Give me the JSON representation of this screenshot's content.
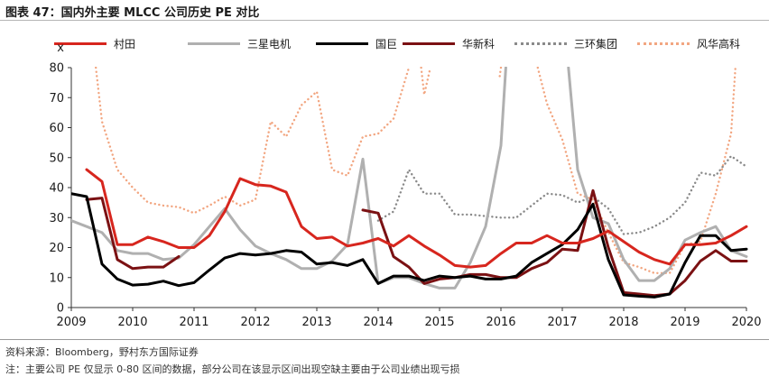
{
  "figure": {
    "title": "图表 47：国内外主要 MLCC 公司历史 PE 对比",
    "source": "资料来源：Bloomberg，野村东方国际证券",
    "note": "注：主要公司 PE 仅显示 0-80 区间的数据，部分公司在该显示区间出现空缺主要由于公司业绩出现亏损"
  },
  "colors": {
    "murata": "#d7261e",
    "samsung": "#b0b0b0",
    "yageo": "#000000",
    "huaxin": "#7b1113",
    "sanhuan": "#8a8a8a",
    "fenghua": "#f2a681"
  },
  "chart_data": {
    "type": "line",
    "title": "",
    "xlabel": "",
    "ylabel": "x",
    "xlim": [
      2009,
      2020
    ],
    "ylim": [
      0,
      80
    ],
    "xticks": [
      "2009",
      "2010",
      "2011",
      "2012",
      "2013",
      "2014",
      "2015",
      "2016",
      "2017",
      "2018",
      "2019",
      "2020"
    ],
    "yticks": [
      "0",
      "10",
      "20",
      "30",
      "40",
      "50",
      "60",
      "70",
      "80"
    ],
    "grid": false,
    "legend_position": "top",
    "series": [
      {
        "name": "村田",
        "key": "murata",
        "style": "solid",
        "points": [
          [
            2009.25,
            46
          ],
          [
            2009.5,
            42
          ],
          [
            2009.75,
            21
          ],
          [
            2010.0,
            21
          ],
          [
            2010.25,
            23.5
          ],
          [
            2010.5,
            22
          ],
          [
            2010.75,
            20
          ],
          [
            2011.0,
            20
          ],
          [
            2011.25,
            24
          ],
          [
            2011.5,
            32
          ],
          [
            2011.75,
            43
          ],
          [
            2012.0,
            41
          ],
          [
            2012.25,
            40.5
          ],
          [
            2012.5,
            38.5
          ],
          [
            2012.75,
            27
          ],
          [
            2013.0,
            23
          ],
          [
            2013.25,
            23.5
          ],
          [
            2013.5,
            20.5
          ],
          [
            2013.75,
            21.5
          ],
          [
            2014.0,
            23
          ],
          [
            2014.25,
            20.5
          ],
          [
            2014.5,
            24
          ],
          [
            2014.75,
            20.5
          ],
          [
            2015.0,
            17.5
          ],
          [
            2015.25,
            14
          ],
          [
            2015.5,
            13.5
          ],
          [
            2015.75,
            14
          ],
          [
            2016.0,
            18
          ],
          [
            2016.25,
            21.5
          ],
          [
            2016.5,
            21.5
          ],
          [
            2016.75,
            24
          ],
          [
            2017.0,
            21.5
          ],
          [
            2017.25,
            21.5
          ],
          [
            2017.5,
            23
          ],
          [
            2017.75,
            25.5
          ],
          [
            2018.0,
            22
          ],
          [
            2018.25,
            18.5
          ],
          [
            2018.5,
            16
          ],
          [
            2018.75,
            14.5
          ],
          [
            2019.0,
            21
          ],
          [
            2019.25,
            21
          ],
          [
            2019.5,
            21.5
          ],
          [
            2019.75,
            24
          ],
          [
            2020.0,
            27
          ]
        ]
      },
      {
        "name": "三星电机",
        "key": "samsung",
        "style": "solid",
        "points": [
          [
            2009.0,
            29
          ],
          [
            2009.25,
            27
          ],
          [
            2009.5,
            25
          ],
          [
            2009.75,
            19
          ],
          [
            2010.0,
            18
          ],
          [
            2010.25,
            18
          ],
          [
            2010.5,
            16
          ],
          [
            2010.75,
            16.5
          ],
          [
            2011.0,
            21
          ],
          [
            2011.25,
            27
          ],
          [
            2011.5,
            33
          ],
          [
            2011.75,
            26
          ],
          [
            2012.0,
            20.5
          ],
          [
            2012.25,
            18
          ],
          [
            2012.5,
            16
          ],
          [
            2012.75,
            13
          ],
          [
            2013.0,
            13
          ],
          [
            2013.25,
            15.5
          ],
          [
            2013.5,
            21
          ],
          [
            2013.75,
            49.5
          ],
          [
            2014.0,
            8
          ],
          [
            2014.25,
            10
          ],
          [
            2014.5,
            10
          ],
          [
            2014.75,
            8
          ],
          [
            2015.0,
            6.5
          ],
          [
            2015.25,
            6.5
          ],
          [
            2015.5,
            15
          ],
          [
            2015.75,
            27
          ],
          [
            2016.0,
            54
          ],
          [
            2016.08,
            80
          ]
        ],
        "segment2": [
          [
            2017.1,
            80
          ],
          [
            2017.25,
            46
          ],
          [
            2017.5,
            30
          ],
          [
            2017.75,
            28
          ],
          [
            2018.0,
            16
          ],
          [
            2018.25,
            9
          ],
          [
            2018.5,
            9
          ],
          [
            2018.75,
            13
          ],
          [
            2019.0,
            22.5
          ],
          [
            2019.25,
            25
          ],
          [
            2019.5,
            27
          ],
          [
            2019.75,
            19
          ],
          [
            2020.0,
            17
          ]
        ]
      },
      {
        "name": "国巨",
        "key": "yageo",
        "style": "solid",
        "points": [
          [
            2009.0,
            38
          ],
          [
            2009.25,
            37
          ],
          [
            2009.5,
            14.5
          ],
          [
            2009.75,
            9.5
          ],
          [
            2010.0,
            7.5
          ],
          [
            2010.25,
            7.8
          ],
          [
            2010.5,
            8.8
          ],
          [
            2010.75,
            7.3
          ],
          [
            2011.0,
            8.3
          ],
          [
            2011.25,
            12.5
          ],
          [
            2011.5,
            16.5
          ],
          [
            2011.75,
            18
          ],
          [
            2012.0,
            17.5
          ],
          [
            2012.25,
            18
          ],
          [
            2012.5,
            19
          ],
          [
            2012.75,
            18.5
          ],
          [
            2013.0,
            14.5
          ],
          [
            2013.25,
            15
          ],
          [
            2013.5,
            14
          ],
          [
            2013.75,
            16
          ],
          [
            2014.0,
            8
          ],
          [
            2014.25,
            10.5
          ],
          [
            2014.5,
            10.5
          ],
          [
            2014.75,
            9
          ],
          [
            2015.0,
            10.5
          ],
          [
            2015.25,
            10
          ],
          [
            2015.5,
            10.5
          ],
          [
            2015.75,
            9.5
          ],
          [
            2016.0,
            9.5
          ],
          [
            2016.25,
            10.5
          ],
          [
            2016.5,
            15
          ],
          [
            2016.75,
            18
          ],
          [
            2017.0,
            21
          ],
          [
            2017.25,
            26
          ],
          [
            2017.5,
            34.5
          ],
          [
            2017.75,
            16
          ],
          [
            2018.0,
            4.2
          ],
          [
            2018.25,
            3.8
          ],
          [
            2018.5,
            3.5
          ],
          [
            2018.75,
            4.5
          ],
          [
            2019.0,
            15
          ],
          [
            2019.25,
            24
          ],
          [
            2019.5,
            24
          ],
          [
            2019.75,
            19
          ],
          [
            2020.0,
            19.5
          ]
        ]
      },
      {
        "name": "华新科",
        "key": "huaxin",
        "style": "solid",
        "points": [
          [
            2009.25,
            36
          ],
          [
            2009.5,
            36.5
          ],
          [
            2009.75,
            16
          ],
          [
            2010.0,
            13
          ],
          [
            2010.25,
            13.5
          ],
          [
            2010.5,
            13.5
          ],
          [
            2010.75,
            17
          ]
        ],
        "segment2": [
          [
            2013.75,
            32.5
          ],
          [
            2014.0,
            31.5
          ],
          [
            2014.25,
            17
          ],
          [
            2014.5,
            13.5
          ],
          [
            2014.75,
            8
          ],
          [
            2015.0,
            9.5
          ],
          [
            2015.25,
            10
          ],
          [
            2015.5,
            11
          ],
          [
            2015.75,
            11
          ],
          [
            2016.0,
            10
          ],
          [
            2016.25,
            10
          ],
          [
            2016.5,
            13
          ],
          [
            2016.75,
            15
          ],
          [
            2017.0,
            19.5
          ],
          [
            2017.25,
            19
          ],
          [
            2017.5,
            39
          ],
          [
            2017.75,
            20
          ],
          [
            2018.0,
            5
          ],
          [
            2018.25,
            4.5
          ],
          [
            2018.5,
            4
          ],
          [
            2018.75,
            4.5
          ],
          [
            2019.0,
            9
          ],
          [
            2019.25,
            15.5
          ],
          [
            2019.5,
            19
          ],
          [
            2019.75,
            15.5
          ],
          [
            2020.0,
            15.5
          ]
        ]
      },
      {
        "name": "三环集团",
        "key": "sanhuan",
        "style": "dotted",
        "points": [
          [
            2014.0,
            29
          ],
          [
            2014.25,
            32
          ],
          [
            2014.5,
            46
          ],
          [
            2014.75,
            38
          ],
          [
            2015.0,
            38
          ],
          [
            2015.25,
            31
          ],
          [
            2015.5,
            31
          ],
          [
            2015.75,
            30.5
          ],
          [
            2016.0,
            30
          ],
          [
            2016.25,
            30
          ],
          [
            2016.5,
            34
          ],
          [
            2016.75,
            38
          ],
          [
            2017.0,
            37.5
          ],
          [
            2017.25,
            35
          ],
          [
            2017.5,
            37
          ],
          [
            2017.75,
            33
          ],
          [
            2018.0,
            24.5
          ],
          [
            2018.25,
            25
          ],
          [
            2018.5,
            27
          ],
          [
            2018.75,
            30
          ],
          [
            2019.0,
            35
          ],
          [
            2019.25,
            45
          ],
          [
            2019.5,
            44
          ],
          [
            2019.75,
            50.5
          ],
          [
            2020.0,
            47
          ]
        ]
      },
      {
        "name": "风华高科",
        "key": "fenghua",
        "style": "dotted",
        "points": [
          [
            2009.4,
            80
          ],
          [
            2009.5,
            62
          ],
          [
            2009.75,
            46
          ],
          [
            2010.0,
            40
          ],
          [
            2010.25,
            35
          ],
          [
            2010.5,
            34
          ],
          [
            2010.75,
            33.5
          ],
          [
            2011.0,
            31.5
          ],
          [
            2011.25,
            34
          ],
          [
            2011.5,
            37
          ],
          [
            2011.75,
            34
          ],
          [
            2012.0,
            36
          ],
          [
            2012.25,
            62
          ],
          [
            2012.5,
            57
          ],
          [
            2012.75,
            67.5
          ],
          [
            2013.0,
            72
          ],
          [
            2013.25,
            46
          ],
          [
            2013.5,
            44
          ],
          [
            2013.75,
            57
          ],
          [
            2014.0,
            58
          ],
          [
            2014.25,
            63
          ],
          [
            2014.5,
            80
          ]
        ],
        "segment2": [
          [
            2014.7,
            80
          ],
          [
            2014.75,
            71
          ],
          [
            2014.85,
            80
          ]
        ],
        "segment3": [
          [
            2016.0,
            80
          ],
          [
            2015.98,
            77
          ]
        ],
        "segment4": [
          [
            2016.6,
            80
          ],
          [
            2016.75,
            68
          ],
          [
            2017.0,
            56
          ],
          [
            2017.25,
            38
          ],
          [
            2017.5,
            36
          ],
          [
            2017.75,
            25
          ],
          [
            2018.0,
            15
          ],
          [
            2018.25,
            13.5
          ],
          [
            2018.5,
            11.5
          ],
          [
            2018.75,
            11.5
          ],
          [
            2019.0,
            21
          ],
          [
            2019.25,
            22
          ],
          [
            2019.5,
            38
          ],
          [
            2019.75,
            58
          ],
          [
            2019.82,
            80
          ]
        ]
      }
    ]
  }
}
